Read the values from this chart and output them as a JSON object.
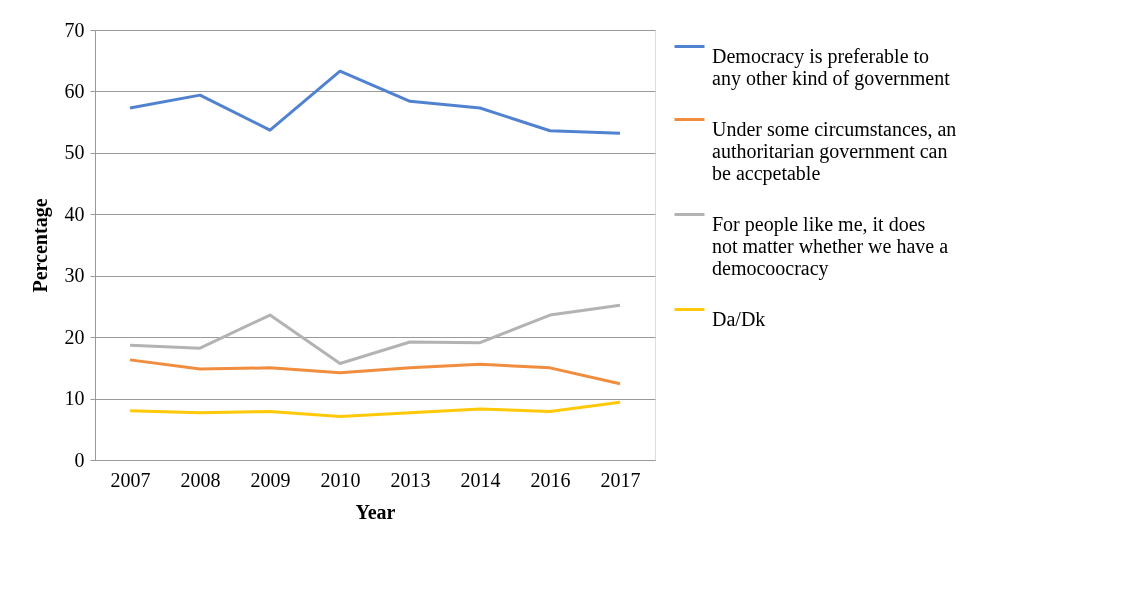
{
  "chart_data": {
    "type": "line",
    "xlabel": "Year",
    "ylabel": "Percentage",
    "categories": [
      "2007",
      "2008",
      "2009",
      "2010",
      "2013",
      "2014",
      "2016",
      "2017"
    ],
    "series": [
      {
        "name": "Democracy is preferable to any other kind of government",
        "color": "#5182d0",
        "values": [
          57.3,
          59.4,
          53.7,
          63.3,
          58.4,
          57.3,
          53.6,
          53.2
        ]
      },
      {
        "name": "Under some circumstances, an authoritarian government can be accpetable",
        "color": "#f08d3e",
        "values": [
          16.3,
          14.8,
          15.0,
          14.2,
          15.0,
          15.6,
          15.0,
          12.4
        ]
      },
      {
        "name": "For people like me, it does not matter whether we have a democoocracy",
        "color": "#b3b3b3",
        "values": [
          18.7,
          18.2,
          23.6,
          15.7,
          19.2,
          19.1,
          23.6,
          25.2
        ]
      },
      {
        "name": "Da/Dk",
        "color": "#ffc90a",
        "values": [
          8.0,
          7.7,
          7.9,
          7.1,
          7.7,
          8.3,
          7.9,
          9.4
        ]
      }
    ],
    "ylim": [
      0,
      70
    ],
    "yticks": [
      0,
      10,
      20,
      30,
      40,
      50,
      60,
      70
    ],
    "grid": "y",
    "legend": "right",
    "marker": "none",
    "line_style": "solid"
  }
}
